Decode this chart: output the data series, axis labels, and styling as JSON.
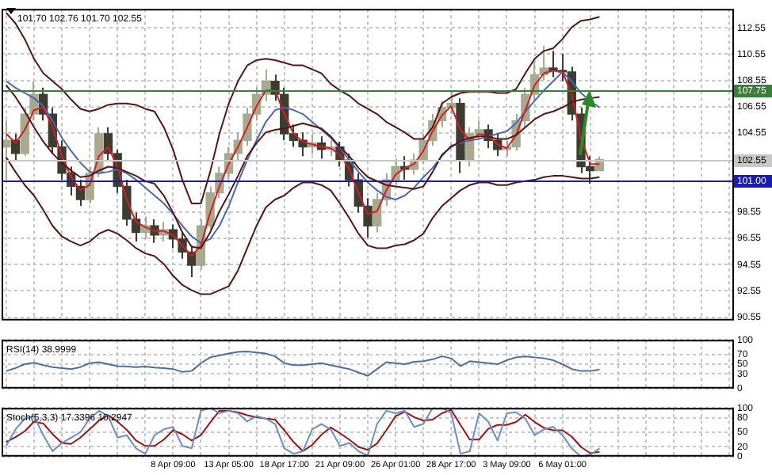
{
  "chart_data": [
    {
      "type": "candlestick",
      "title": "101.70 102.76 101.70 102.55",
      "colors": [
        "#a9a990",
        "#3c3c30",
        "#a9a990",
        "#a9a990",
        "#3c3c30",
        "#3c3c30",
        "#3c3c30",
        "#3c3c30",
        "#3c3c30",
        "#a9a990",
        "#a9a990",
        "#3c3c30",
        "#3c3c30",
        "#3c3c30",
        "#3c3c30",
        "#a9a990",
        "#3c3c30",
        "#a9a990",
        "#3c3c30",
        "#3c3c30",
        "#3c3c30",
        "#a9a990",
        "#a9a990",
        "#a9a990",
        "#a9a990",
        "#a9a990",
        "#a9a990",
        "#a9a990",
        "#a9a990",
        "#3c3c30",
        "#3c3c30",
        "#3c3c30",
        "#3c3c30",
        "#a9a990",
        "#3c3c30",
        "#a9a990",
        "#3c3c30",
        "#3c3c30",
        "#3c3c30",
        "#3c3c30",
        "#a9a990",
        "#a9a990",
        "#a9a990",
        "#3c3c30",
        "#a9a990",
        "#a9a990",
        "#a9a990",
        "#a9a990",
        "#a9a990",
        "#3c3c30",
        "#a9a990",
        "#a9a990",
        "#3c3c30",
        "#3c3c30",
        "#a9a990",
        "#a9a990",
        "#a9a990",
        "#a9a990",
        "#a9a990",
        "#3c3c30",
        "#3c3c30",
        "#3c3c30",
        "#3c3c30",
        "#3c3c30",
        "#a9a990",
        null,
        null,
        null,
        null,
        null,
        null,
        null,
        null,
        null,
        null,
        null,
        null,
        null,
        null
      ],
      "categories": [
        null,
        null,
        null,
        null,
        null,
        null,
        null,
        null,
        null,
        null,
        null,
        null,
        null,
        null,
        null,
        null,
        null,
        null,
        null,
        null,
        null,
        null,
        null,
        null,
        null,
        null,
        null,
        null,
        null,
        null,
        null,
        null,
        null,
        null,
        null,
        null,
        null,
        null,
        null,
        null,
        null,
        null,
        null,
        null,
        null,
        null,
        null,
        null,
        null,
        null,
        null,
        null,
        null,
        null,
        null,
        null,
        null,
        null,
        null,
        null,
        null,
        null,
        null,
        null,
        null,
        null,
        null,
        null,
        null,
        null,
        null,
        null,
        null,
        null,
        null,
        null,
        null,
        null,
        null
      ],
      "ohlc": [
        [
          103.5,
          105.5,
          101,
          104
        ],
        [
          104,
          104.5,
          102.5,
          103
        ],
        [
          103,
          106.5,
          102.8,
          106
        ],
        [
          106,
          108.5,
          105.5,
          107.5
        ],
        [
          107.5,
          108,
          105.5,
          106
        ],
        [
          106,
          106.5,
          103,
          103.5
        ],
        [
          103.5,
          104,
          101,
          101.5
        ],
        [
          101.5,
          102,
          99.8,
          100.5
        ],
        [
          100.5,
          101,
          99,
          99.5
        ],
        [
          99.5,
          102,
          99.2,
          101.5
        ],
        [
          101.5,
          105,
          101.2,
          104.5
        ],
        [
          104.5,
          105,
          102.5,
          103
        ],
        [
          103,
          103.3,
          100,
          100.5
        ],
        [
          100.5,
          101,
          97.5,
          98
        ],
        [
          98,
          98.5,
          96.3,
          97
        ],
        [
          97,
          98.2,
          96.5,
          97.5
        ],
        [
          97.5,
          98,
          96.2,
          96.8
        ],
        [
          96.8,
          97.8,
          96.3,
          97.2
        ],
        [
          97.2,
          97.6,
          95.8,
          96.5
        ],
        [
          96.5,
          97,
          95,
          95.5
        ],
        [
          95.5,
          96,
          93.6,
          94.5
        ],
        [
          94.5,
          98,
          94.2,
          97.5
        ],
        [
          97.5,
          100.5,
          97.2,
          100
        ],
        [
          100,
          102,
          99.6,
          101.5
        ],
        [
          101.5,
          103.5,
          101,
          103
        ],
        [
          103,
          104.6,
          102.5,
          104
        ],
        [
          104,
          106.5,
          103.6,
          106
        ],
        [
          106,
          108,
          105.5,
          107.5
        ],
        [
          107.5,
          109.4,
          107,
          108.5
        ],
        [
          108.5,
          109,
          107,
          107.5
        ],
        [
          107.5,
          108,
          104,
          104.5
        ],
        [
          104.5,
          105.2,
          103.5,
          104
        ],
        [
          104,
          104.6,
          102.8,
          103.5
        ],
        [
          103.5,
          104.5,
          103,
          103.8
        ],
        [
          103.8,
          104.3,
          102.6,
          103.3
        ],
        [
          103.3,
          104,
          102.8,
          103.5
        ],
        [
          103.5,
          103.9,
          102,
          102.5
        ],
        [
          102.5,
          103,
          100.5,
          101
        ],
        [
          101,
          101.5,
          98.5,
          99
        ],
        [
          99,
          99.6,
          96.6,
          97.5
        ],
        [
          97.5,
          100,
          97,
          99.5
        ],
        [
          99.5,
          101.5,
          99,
          101
        ],
        [
          101,
          102.6,
          100.6,
          102
        ],
        [
          102,
          102.8,
          101,
          101.8
        ],
        [
          101.8,
          103,
          101.4,
          102.5
        ],
        [
          102.5,
          104.5,
          102.2,
          104
        ],
        [
          104,
          106,
          103.6,
          105.5
        ],
        [
          105.5,
          107,
          105,
          106.5
        ],
        [
          106.5,
          107.8,
          106,
          106.8
        ],
        [
          106.8,
          107.2,
          101.5,
          102.5
        ],
        [
          102.5,
          105,
          102,
          104.5
        ],
        [
          104.5,
          105.5,
          104,
          104.8
        ],
        [
          104.8,
          105.2,
          103.4,
          104
        ],
        [
          104,
          104.5,
          102.8,
          103.3
        ],
        [
          103.3,
          104,
          102.8,
          103.5
        ],
        [
          103.5,
          106,
          103.2,
          105.5
        ],
        [
          105.5,
          108,
          105,
          107.5
        ],
        [
          107.5,
          110,
          107,
          109
        ],
        [
          109,
          111.2,
          108.6,
          109.5
        ],
        [
          109.5,
          110.8,
          108.8,
          109.3
        ],
        [
          109.3,
          110.6,
          108.5,
          109.2
        ],
        [
          109.2,
          109.6,
          105.5,
          106
        ],
        [
          106,
          106.5,
          101.5,
          102
        ],
        [
          102,
          102.8,
          100.7,
          101.7
        ],
        [
          101.7,
          102.76,
          101.7,
          102.55
        ],
        null,
        null,
        null,
        null,
        null,
        null,
        null,
        null,
        null,
        null,
        null,
        null,
        null,
        null
      ],
      "series": [
        {
          "type": "line",
          "color": "#5a1414",
          "values": [
            113.7,
            112.9,
            111.7,
            110.2,
            109.1,
            108.5,
            107.9,
            107.1,
            106.4,
            106.2,
            106.4,
            106.7,
            106.8,
            106.8,
            106.7,
            106.4,
            106.2,
            105.0,
            103.3,
            101.0,
            99.2,
            99.2,
            101.6,
            104.5,
            106.8,
            108.5,
            109.7,
            110.1,
            110.2,
            110.1,
            109.9,
            109.7,
            109.7,
            109.4,
            109.1,
            108.3,
            107.8,
            107.4,
            106.8,
            106.4,
            106.0,
            105.4,
            105.0,
            104.6,
            104.1,
            104.1,
            105.0,
            106.8,
            107.3,
            107.6,
            107.7,
            107.7,
            107.7,
            107.6,
            107.6,
            107.9,
            109.1,
            110.2,
            110.8,
            111.0,
            111.7,
            112.6,
            113.1,
            113.2,
            113.4,
            null,
            null,
            null,
            null,
            null,
            null,
            null,
            null,
            null,
            null,
            null,
            null,
            null,
            null
          ]
        },
        {
          "type": "line",
          "color": "#5a1414",
          "values": [
            108.2,
            107.3,
            106.2,
            105.0,
            103.9,
            103.0,
            102.3,
            101.7,
            101.2,
            101.3,
            101.7,
            102.0,
            101.9,
            101.6,
            101.3,
            100.9,
            100.7,
            99.8,
            98.5,
            97.0,
            95.9,
            95.8,
            97.0,
            98.6,
            99.9,
            101.3,
            102.8,
            103.8,
            104.6,
            104.8,
            104.9,
            105.1,
            105.3,
            105.1,
            104.9,
            104.3,
            103.5,
            102.8,
            101.9,
            101.2,
            100.9,
            100.6,
            100.5,
            100.4,
            100.3,
            100.5,
            101.6,
            102.9,
            103.5,
            103.9,
            104.2,
            104.3,
            104.3,
            104.1,
            104.1,
            104.4,
            105.0,
            105.6,
            106.0,
            106.2,
            106.5,
            106.9,
            107.1,
            107.2,
            107.3,
            null,
            null,
            null,
            null,
            null,
            null,
            null,
            null,
            null,
            null,
            null,
            null,
            null,
            null
          ]
        },
        {
          "type": "line",
          "color": "#5a1414",
          "values": [
            102.7,
            101.6,
            100.6,
            99.8,
            98.7,
            97.5,
            96.7,
            96.3,
            96.0,
            96.3,
            96.9,
            97.2,
            96.9,
            96.4,
            95.8,
            95.4,
            95.2,
            94.6,
            93.7,
            93.0,
            92.6,
            92.3,
            92.3,
            92.6,
            92.9,
            94.1,
            95.8,
            97.5,
            98.9,
            99.5,
            99.8,
            100.4,
            100.8,
            100.8,
            100.6,
            100.2,
            99.2,
            98.1,
            96.9,
            96.0,
            95.8,
            95.8,
            96.0,
            96.1,
            96.4,
            96.9,
            98.1,
            99.0,
            99.6,
            100.2,
            100.6,
            100.8,
            100.8,
            100.6,
            100.6,
            100.8,
            100.9,
            101.0,
            101.2,
            101.3,
            101.3,
            101.2,
            101.1,
            101.1,
            101.2,
            null,
            null,
            null,
            null,
            null,
            null,
            null,
            null,
            null,
            null,
            null,
            null,
            null,
            null
          ]
        },
        {
          "type": "line",
          "color": "#d02020",
          "values": [
            104.5,
            103.8,
            104.8,
            106.3,
            106.5,
            105,
            102.8,
            101.2,
            100.2,
            100.6,
            102.8,
            103.5,
            102,
            99.5,
            97.8,
            97.4,
            97.1,
            97.1,
            96.8,
            96,
            95.2,
            96,
            98.5,
            100.5,
            102.2,
            103.5,
            105,
            106.6,
            107.8,
            107.8,
            106,
            104.5,
            103.9,
            103.7,
            103.5,
            103.4,
            102.9,
            101.8,
            100,
            98.4,
            98.6,
            100.2,
            101.4,
            101.9,
            102.2,
            103.2,
            104.7,
            105.9,
            106.6,
            104.8,
            104,
            104.5,
            104.3,
            103.7,
            103.4,
            104.4,
            106.3,
            108.2,
            109.1,
            109.3,
            109.2,
            107.5,
            104.2,
            102.2,
            102.2,
            null,
            null,
            null,
            null,
            null,
            null,
            null,
            null,
            null,
            null,
            null,
            null,
            null,
            null
          ]
        },
        {
          "type": "line",
          "color": "#4868b8",
          "values": [
            108.5,
            108,
            107.6,
            107.2,
            106.6,
            105.5,
            104.2,
            103.2,
            102.3,
            101.6,
            101.5,
            101.6,
            101.8,
            101.5,
            101,
            100.4,
            99.8,
            99.2,
            98.4,
            97.5,
            96.7,
            96.2,
            96.5,
            97.5,
            99,
            100.8,
            102.5,
            104,
            105.4,
            106.3,
            106.5,
            106.3,
            106,
            105.4,
            104.8,
            104.2,
            103.4,
            102.5,
            101.6,
            100.8,
            100.2,
            99.7,
            99.5,
            99.8,
            100.4,
            101.2,
            101.9,
            102.8,
            103.6,
            103.8,
            104,
            104.1,
            104.3,
            104.5,
            104.7,
            105.3,
            106.2,
            107,
            107.8,
            108.5,
            109.2,
            108.5,
            107.6,
            107,
            106.5,
            null,
            null,
            null,
            null,
            null,
            null,
            null,
            null,
            null,
            null,
            null,
            null,
            null,
            null
          ]
        }
      ],
      "ylim": [
        90.3,
        114
      ],
      "yticks": [
        90.55,
        92.55,
        94.55,
        96.55,
        98.55,
        104.55,
        106.55,
        108.55,
        110.55,
        112.55
      ],
      "ref_lines": [
        {
          "axis": "y",
          "value": 107.75,
          "label": "107.75",
          "color": "#3a7d3a"
        },
        {
          "axis": "y",
          "value": 102.55,
          "label": "102.55",
          "color": "#c8c8c8"
        },
        {
          "axis": "y",
          "value": 101.0,
          "label": "101.00",
          "color": "#1c1ca8"
        }
      ],
      "grid": true,
      "tick_labels": "y"
    },
    {
      "type": "line",
      "title": "RSI(14) 38.9999",
      "categories": [
        null,
        null,
        null,
        null,
        null,
        null,
        null,
        null,
        null,
        null,
        null,
        null,
        null,
        null,
        null,
        null,
        null,
        null,
        null,
        null,
        null,
        null,
        null,
        null,
        null,
        null,
        null,
        null,
        null,
        null,
        null,
        null,
        null,
        null,
        null,
        null,
        null,
        null,
        null,
        null,
        null,
        null,
        null,
        null,
        null,
        null,
        null,
        null,
        null,
        null,
        null,
        null,
        null,
        null,
        null,
        null,
        null,
        null,
        null,
        null,
        null,
        null,
        null,
        null,
        null,
        null,
        null,
        null,
        null,
        null,
        null,
        null,
        null,
        null,
        null,
        null,
        null,
        null,
        null
      ],
      "series": [
        {
          "color": "#4a6fa5",
          "values": [
            36,
            42,
            50,
            53,
            48,
            44,
            42,
            40,
            44,
            52,
            54,
            50,
            46,
            45,
            44,
            45,
            43,
            42,
            40,
            34,
            36,
            52,
            64,
            68,
            72,
            75,
            76,
            74,
            72,
            66,
            52,
            48,
            48,
            50,
            52,
            48,
            44,
            40,
            33,
            26,
            40,
            54,
            52,
            50,
            55,
            56,
            60,
            66,
            62,
            46,
            56,
            54,
            52,
            50,
            58,
            64,
            66,
            64,
            62,
            58,
            50,
            40,
            36,
            36,
            39,
            null,
            null,
            null,
            null,
            null,
            null,
            null,
            null,
            null,
            null,
            null,
            null,
            null,
            null
          ]
        }
      ],
      "ylim": [
        0,
        100
      ],
      "yticks": [
        0,
        30,
        50,
        70,
        100
      ],
      "grid": true,
      "tick_labels": "y"
    },
    {
      "type": "line",
      "title": "Stoch(5,3,3) 17.3396 10.2947",
      "categories": [
        null,
        null,
        null,
        null,
        null,
        null,
        null,
        null,
        null,
        null,
        null,
        null,
        null,
        null,
        null,
        null,
        null,
        null,
        "8 Apr 09:00",
        null,
        null,
        null,
        null,
        null,
        "13 Apr 05:00",
        null,
        null,
        null,
        null,
        null,
        "18 Apr 17:00",
        null,
        null,
        null,
        null,
        null,
        "21 Apr 09:00",
        null,
        null,
        null,
        null,
        null,
        "26 Apr 01:00",
        null,
        null,
        null,
        null,
        null,
        "28 Apr 17:00",
        null,
        null,
        null,
        null,
        null,
        "3 May 09:00",
        null,
        null,
        null,
        null,
        null,
        "6 May 01:00",
        null,
        null,
        null,
        null,
        null,
        null,
        null,
        null,
        null,
        null,
        null,
        null,
        null,
        null,
        null,
        null,
        null,
        null
      ],
      "series": [
        {
          "color": "#6a8fc8",
          "values": [
            22,
            56,
            78,
            83,
            44,
            11,
            28,
            39,
            50,
            78,
            94,
            83,
            39,
            44,
            17,
            6,
            44,
            56,
            61,
            22,
            17,
            94,
            100,
            89,
            94,
            89,
            72,
            83,
            78,
            67,
            17,
            6,
            11,
            56,
            67,
            56,
            22,
            28,
            11,
            2,
            67,
            94,
            89,
            94,
            61,
            67,
            100,
            100,
            89,
            6,
            11,
            89,
            72,
            33,
            89,
            91,
            78,
            44,
            56,
            61,
            44,
            17,
            0,
            4,
            17,
            null,
            null,
            null,
            null,
            null,
            null,
            null,
            null,
            null,
            null,
            null,
            null,
            null,
            null
          ]
        },
        {
          "color": "#a01212",
          "values": [
            30,
            40,
            52,
            72,
            68,
            46,
            28,
            26,
            39,
            56,
            74,
            85,
            72,
            55,
            33,
            22,
            22,
            35,
            54,
            46,
            33,
            44,
            70,
            94,
            94,
            91,
            85,
            81,
            78,
            76,
            54,
            30,
            11,
            24,
            45,
            60,
            48,
            35,
            20,
            14,
            27,
            54,
            83,
            92,
            81,
            74,
            76,
            89,
            96,
            65,
            35,
            35,
            57,
            65,
            65,
            71,
            86,
            71,
            59,
            54,
            54,
            41,
            20,
            7,
            10,
            null,
            null,
            null,
            null,
            null,
            null,
            null,
            null,
            null,
            null,
            null,
            null,
            null,
            null
          ]
        }
      ],
      "ylim": [
        0,
        100
      ],
      "yticks": [
        0,
        20,
        50,
        80,
        100
      ],
      "grid": true
    }
  ]
}
